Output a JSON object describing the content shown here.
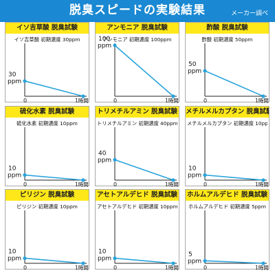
{
  "header": {
    "title": "脱臭スピードの実験結果",
    "note": "メーカー調べ"
  },
  "colors": {
    "header_bg": "#1a88d2",
    "panel_head_bg": "#ffe81a",
    "line": "#29a3dc",
    "axis": "#222222"
  },
  "chart_data": [
    {
      "type": "line",
      "title": "イソ吉草酸 脱臭試験",
      "subtitle": "イソ吉草酸 初期濃度 30ppm",
      "xlabel": "",
      "ylabel": "",
      "x_ticks": [
        "0",
        "1時間"
      ],
      "y_tick_value": "30",
      "y_unit": "ppm",
      "ylim": [
        0,
        100
      ],
      "series": [
        {
          "x": [
            0,
            1
          ],
          "values": [
            30,
            0
          ]
        }
      ]
    },
    {
      "type": "line",
      "title": "アンモニア 脱臭試験",
      "subtitle": "アンモニア 初期濃度 100ppm",
      "xlabel": "",
      "ylabel": "",
      "x_ticks": [
        "0",
        "1時間"
      ],
      "y_tick_value": "100",
      "y_unit": "ppm",
      "ylim": [
        0,
        100
      ],
      "series": [
        {
          "x": [
            0,
            1
          ],
          "values": [
            100,
            0
          ]
        }
      ]
    },
    {
      "type": "line",
      "title": "酢酸 脱臭試験",
      "subtitle": "酢酸 初期濃度 50ppm",
      "xlabel": "",
      "ylabel": "",
      "x_ticks": [
        "0",
        "1時間"
      ],
      "y_tick_value": "50",
      "y_unit": "ppm",
      "ylim": [
        0,
        100
      ],
      "series": [
        {
          "x": [
            0,
            1
          ],
          "values": [
            50,
            0
          ]
        }
      ]
    },
    {
      "type": "line",
      "title": "硫化水素 脱臭試験",
      "subtitle": "硫化水素 初期濃度 10ppm",
      "xlabel": "",
      "ylabel": "",
      "x_ticks": [
        "0",
        "1時間"
      ],
      "y_tick_value": "10",
      "y_unit": "ppm",
      "ylim": [
        0,
        100
      ],
      "series": [
        {
          "x": [
            0,
            1
          ],
          "values": [
            10,
            0
          ]
        }
      ]
    },
    {
      "type": "line",
      "title": "トリメチルアミン 脱臭試験",
      "subtitle": "トリメチルアミン 初期濃度 40ppm",
      "xlabel": "",
      "ylabel": "",
      "x_ticks": [
        "0",
        "1時間"
      ],
      "y_tick_value": "40",
      "y_unit": "ppm",
      "ylim": [
        0,
        100
      ],
      "series": [
        {
          "x": [
            0,
            1
          ],
          "values": [
            40,
            0
          ]
        }
      ]
    },
    {
      "type": "line",
      "title": "メチルメルカプタン 脱臭試験",
      "subtitle": "メチルメルカプタン 初期濃度 10ppm",
      "xlabel": "",
      "ylabel": "",
      "x_ticks": [
        "0",
        "1時間"
      ],
      "y_tick_value": "10",
      "y_unit": "ppm",
      "ylim": [
        0,
        100
      ],
      "series": [
        {
          "x": [
            0,
            1
          ],
          "values": [
            10,
            0
          ]
        }
      ]
    },
    {
      "type": "line",
      "title": "ピリジン 脱臭試験",
      "subtitle": "ピリジン 初期濃度 10ppm",
      "xlabel": "",
      "ylabel": "",
      "x_ticks": [
        "0",
        "1時間"
      ],
      "y_tick_value": "10",
      "y_unit": "ppm",
      "ylim": [
        0,
        100
      ],
      "series": [
        {
          "x": [
            0,
            1
          ],
          "values": [
            10,
            0
          ]
        }
      ]
    },
    {
      "type": "line",
      "title": "アセトアルデヒド 脱臭試験",
      "subtitle": "アセトアルデヒド 初期濃度 10ppm",
      "xlabel": "",
      "ylabel": "",
      "x_ticks": [
        "0",
        "1時間"
      ],
      "y_tick_value": "10",
      "y_unit": "ppm",
      "ylim": [
        0,
        100
      ],
      "series": [
        {
          "x": [
            0,
            1
          ],
          "values": [
            10,
            0
          ]
        }
      ]
    },
    {
      "type": "line",
      "title": "ホルムアルデヒド 脱臭試験",
      "subtitle": "ホルムアルデヒド 初期濃度 5ppm",
      "xlabel": "",
      "ylabel": "",
      "x_ticks": [
        "0",
        "1時間"
      ],
      "y_tick_value": "5",
      "y_unit": "ppm",
      "ylim": [
        0,
        100
      ],
      "series": [
        {
          "x": [
            0,
            1
          ],
          "values": [
            5,
            0
          ]
        }
      ]
    }
  ]
}
